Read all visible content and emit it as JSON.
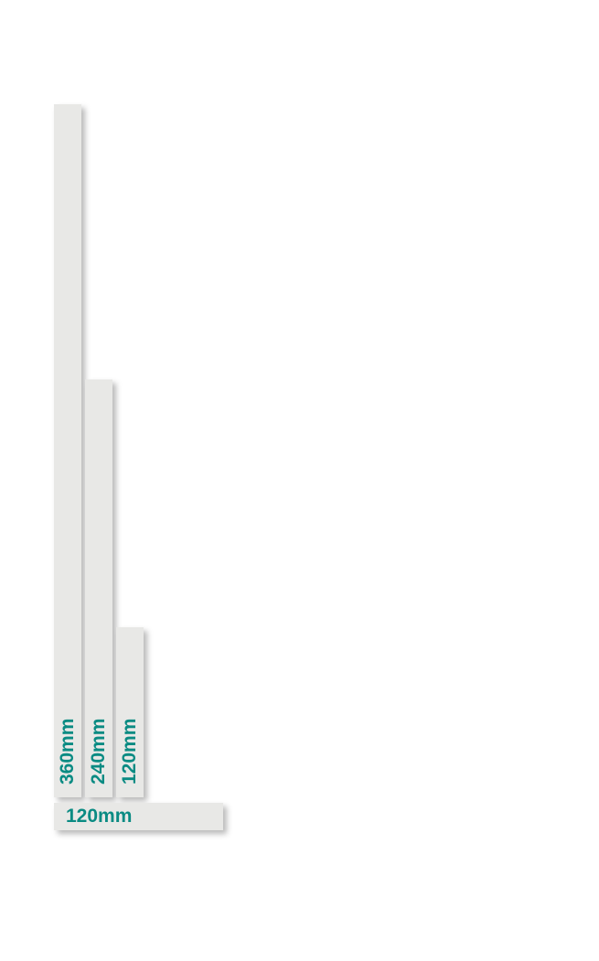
{
  "strips": [
    {
      "label": "360mm",
      "length_mm": 360,
      "orientation": "vertical"
    },
    {
      "label": "240mm",
      "length_mm": 240,
      "orientation": "vertical"
    },
    {
      "label": "120mm",
      "length_mm": 120,
      "orientation": "vertical"
    },
    {
      "label": "120mm",
      "length_mm": 120,
      "orientation": "horizontal"
    }
  ],
  "colors": {
    "strip": "#e8e8e6",
    "label": "#0a8b83"
  }
}
